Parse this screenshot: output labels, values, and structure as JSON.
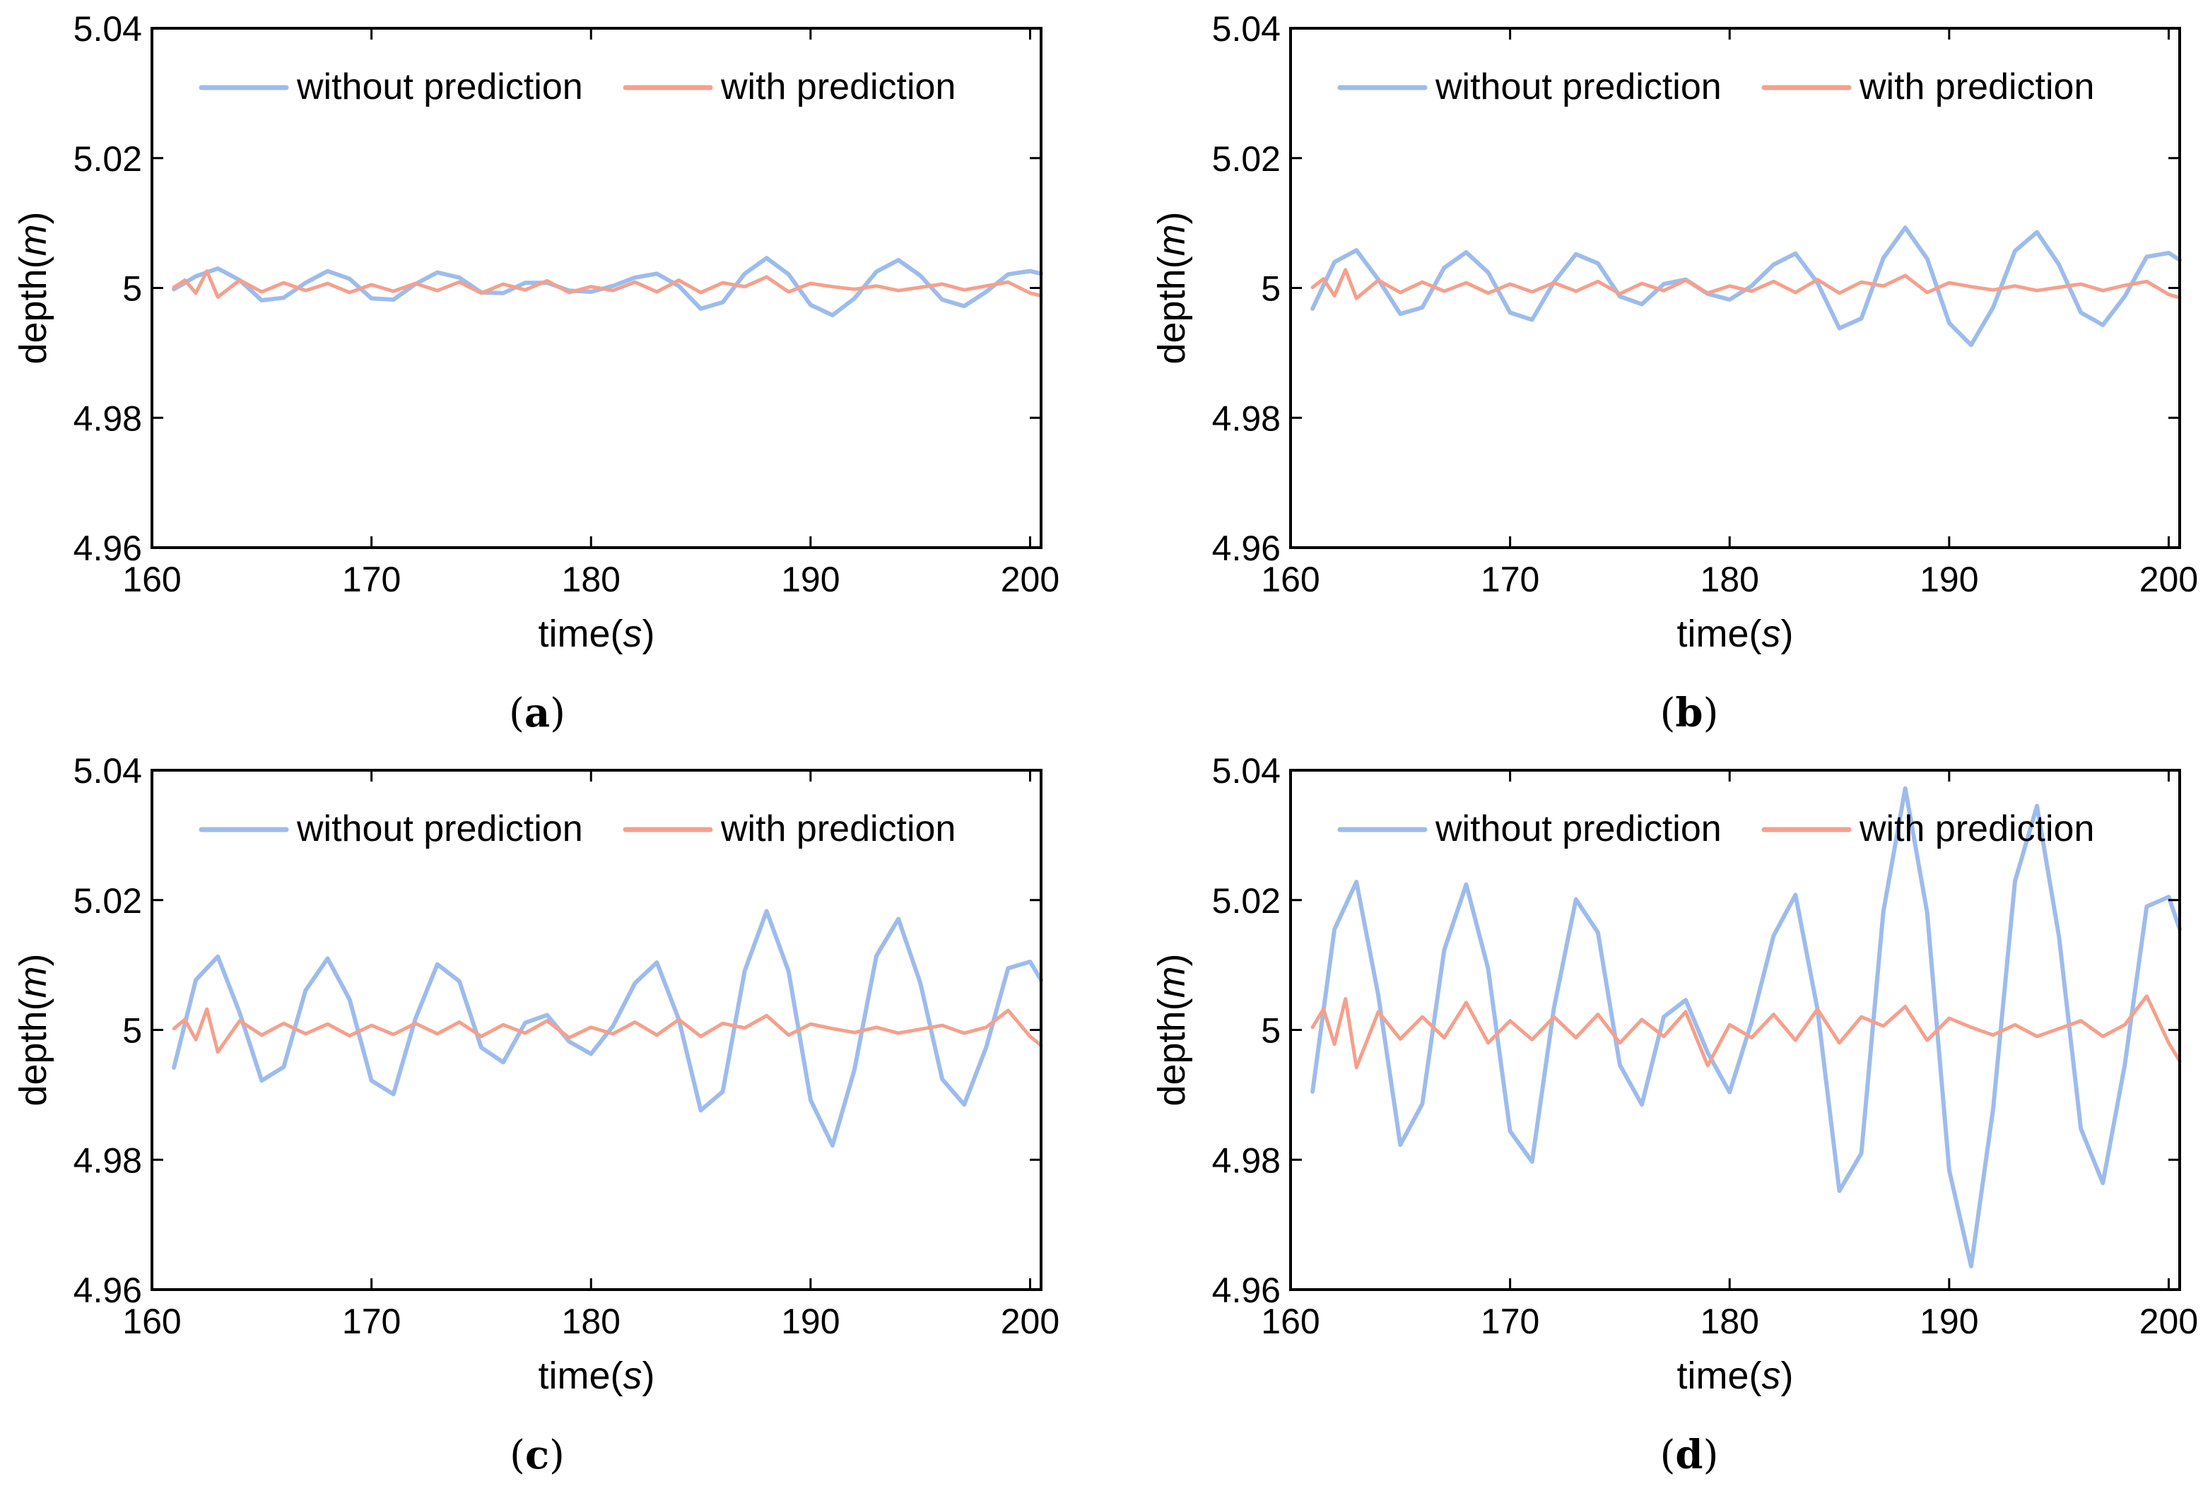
{
  "palette": {
    "without_prediction": "#9dbcec",
    "with_prediction": "#f5a08c"
  },
  "chart_data": [
    {
      "type": "line",
      "caption": "a",
      "xlabel": "time",
      "xlabel_unit": "s",
      "ylabel": "depth",
      "ylabel_unit": "m",
      "xlim": [
        160,
        200.5
      ],
      "ylim": [
        4.96,
        5.04
      ],
      "xticks": [
        "160",
        "170",
        "180",
        "190",
        "200"
      ],
      "yticks": [
        "4.96",
        "4.98",
        "5",
        "5.02",
        "5.04"
      ],
      "legend": {
        "placement": "top",
        "entries": [
          "without prediction",
          "with prediction"
        ]
      },
      "series": [
        {
          "name": "without prediction",
          "color": "#9dbcec",
          "x": [
            161,
            162,
            163,
            164,
            165,
            166,
            167,
            168,
            169,
            170,
            171,
            172,
            173,
            174,
            175,
            176,
            177,
            178,
            179,
            180,
            181,
            182,
            183,
            184,
            185,
            186,
            187,
            188,
            189,
            190,
            191,
            192,
            193,
            194,
            195,
            196,
            197,
            198,
            199,
            200,
            200.5
          ],
          "y": [
            4.9998,
            5.0018,
            5.003,
            5.0012,
            4.9981,
            4.9985,
            5.0008,
            5.0026,
            5.0014,
            4.9984,
            4.9982,
            5.0006,
            5.0024,
            5.0016,
            4.9993,
            4.9992,
            5.0008,
            5.0008,
            4.9996,
            4.9994,
            5.0003,
            5.0016,
            5.0022,
            5.0003,
            4.9968,
            4.9978,
            5.0022,
            5.0046,
            5.0021,
            4.9974,
            4.9958,
            4.9984,
            5.0025,
            5.0043,
            5.0019,
            4.9982,
            4.9972,
            4.9994,
            5.0021,
            5.0026,
            5.0022
          ]
        },
        {
          "name": "with prediction",
          "color": "#f5a08c",
          "x": [
            161,
            161.5,
            162,
            162.5,
            163,
            164,
            165,
            166,
            167,
            168,
            169,
            170,
            171,
            172,
            173,
            174,
            175,
            176,
            177,
            178,
            179,
            180,
            181,
            182,
            183,
            184,
            185,
            186,
            187,
            188,
            189,
            190,
            191,
            192,
            193,
            194,
            195,
            196,
            197,
            198,
            199,
            200,
            200.5
          ],
          "y": [
            5.0001,
            5.0012,
            4.9992,
            5.0026,
            4.9986,
            5.0012,
            4.9994,
            5.0008,
            4.9996,
            5.0007,
            4.9993,
            5.0005,
            4.9995,
            5.0007,
            4.9996,
            5.0009,
            4.9992,
            5.0006,
            4.9997,
            5.0011,
            4.9993,
            5.0002,
            4.9996,
            5.0009,
            4.9994,
            5.0012,
            4.9993,
            5.0008,
            5.0002,
            5.0017,
            4.9994,
            5.0007,
            5.0002,
            4.9998,
            5.0003,
            4.9996,
            5.0001,
            5.0006,
            4.9997,
            5.0003,
            5.0009,
            4.9992,
            4.9988
          ]
        }
      ]
    },
    {
      "type": "line",
      "caption": "b",
      "xlabel": "time",
      "xlabel_unit": "s",
      "ylabel": "depth",
      "ylabel_unit": "m",
      "xlim": [
        160,
        200.5
      ],
      "ylim": [
        4.96,
        5.04
      ],
      "xticks": [
        "160",
        "170",
        "180",
        "190",
        "200"
      ],
      "yticks": [
        "4.96",
        "4.98",
        "5",
        "5.02",
        "5.04"
      ],
      "legend": {
        "placement": "top",
        "entries": [
          "without prediction",
          "with prediction"
        ]
      },
      "series": [
        {
          "name": "without prediction",
          "color": "#9dbcec",
          "x": [
            161,
            162,
            163,
            164,
            165,
            166,
            167,
            168,
            169,
            170,
            171,
            172,
            173,
            174,
            175,
            176,
            177,
            178,
            179,
            180,
            181,
            182,
            183,
            184,
            185,
            186,
            187,
            188,
            189,
            190,
            191,
            192,
            193,
            194,
            195,
            196,
            197,
            198,
            199,
            200,
            200.5
          ],
          "y": [
            4.9968,
            5.004,
            5.0058,
            5.0013,
            4.996,
            4.997,
            5.0031,
            5.0055,
            5.0024,
            4.9962,
            4.9951,
            5.0009,
            5.0052,
            5.0038,
            4.9987,
            4.9975,
            5.0006,
            5.0013,
            4.9991,
            4.9982,
            5.0003,
            5.0036,
            5.0053,
            5.0008,
            4.9938,
            4.9953,
            5.0046,
            5.0093,
            5.0045,
            4.9946,
            4.9912,
            4.997,
            5.0057,
            5.0086,
            5.0036,
            4.9962,
            4.9943,
            4.9987,
            5.0048,
            5.0054,
            5.0043
          ]
        },
        {
          "name": "with prediction",
          "color": "#f5a08c",
          "x": [
            161,
            161.5,
            162,
            162.5,
            163,
            164,
            165,
            166,
            167,
            168,
            169,
            170,
            171,
            172,
            173,
            174,
            175,
            176,
            177,
            178,
            179,
            180,
            181,
            182,
            183,
            184,
            185,
            186,
            187,
            188,
            189,
            190,
            191,
            192,
            193,
            194,
            195,
            196,
            197,
            198,
            199,
            200,
            200.5
          ],
          "y": [
            5.0001,
            5.0014,
            4.9988,
            5.0028,
            4.9984,
            5.0012,
            4.9993,
            5.0009,
            4.9995,
            5.0008,
            4.9992,
            5.0006,
            4.9994,
            5.0008,
            4.9995,
            5.001,
            4.9991,
            5.0007,
            4.9996,
            5.0012,
            4.9992,
            5.0003,
            4.9995,
            5.001,
            4.9993,
            5.0013,
            4.9992,
            5.0009,
            5.0003,
            5.0019,
            4.9993,
            5.0008,
            5.0002,
            4.9997,
            5.0003,
            4.9996,
            5.0001,
            5.0006,
            4.9996,
            5.0004,
            5.001,
            4.999,
            4.9985
          ]
        }
      ]
    },
    {
      "type": "line",
      "caption": "c",
      "xlabel": "time",
      "xlabel_unit": "s",
      "ylabel": "depth",
      "ylabel_unit": "m",
      "xlim": [
        160,
        200.5
      ],
      "ylim": [
        4.96,
        5.04
      ],
      "xticks": [
        "160",
        "170",
        "180",
        "190",
        "200"
      ],
      "yticks": [
        "4.96",
        "4.98",
        "5",
        "5.02",
        "5.04"
      ],
      "legend": {
        "placement": "top",
        "entries": [
          "without prediction",
          "with prediction"
        ]
      },
      "series": [
        {
          "name": "without prediction",
          "color": "#9dbcec",
          "x": [
            161,
            162,
            163,
            164,
            165,
            166,
            167,
            168,
            169,
            170,
            171,
            172,
            173,
            174,
            175,
            176,
            177,
            178,
            179,
            180,
            181,
            182,
            183,
            184,
            185,
            186,
            187,
            188,
            189,
            190,
            191,
            192,
            193,
            194,
            195,
            196,
            197,
            198,
            199,
            200,
            200.5
          ],
          "y": [
            4.9942,
            5.0077,
            5.0113,
            5.0026,
            4.9922,
            4.9943,
            5.0061,
            5.011,
            5.0047,
            4.9922,
            4.9901,
            5.0017,
            5.0101,
            5.0075,
            4.9973,
            4.995,
            5.0011,
            5.0023,
            4.9982,
            4.9963,
            5.0006,
            5.0072,
            5.0104,
            5.0016,
            4.9876,
            4.9905,
            5.0091,
            5.0183,
            5.009,
            4.9892,
            4.9822,
            4.9939,
            5.0114,
            5.0171,
            5.0072,
            4.9924,
            4.9885,
            4.9973,
            5.0095,
            5.0105,
            5.0077
          ]
        },
        {
          "name": "with prediction",
          "color": "#f5a08c",
          "x": [
            161,
            161.5,
            162,
            162.5,
            163,
            164,
            165,
            166,
            167,
            168,
            169,
            170,
            171,
            172,
            173,
            174,
            175,
            176,
            177,
            178,
            179,
            180,
            181,
            182,
            183,
            184,
            185,
            186,
            187,
            188,
            189,
            190,
            191,
            192,
            193,
            194,
            195,
            196,
            197,
            198,
            199,
            200,
            200.5
          ],
          "y": [
            5.0002,
            5.0016,
            4.9985,
            5.0032,
            4.9966,
            5.0014,
            4.9992,
            5.001,
            4.9994,
            5.0009,
            4.9991,
            5.0007,
            4.9993,
            5.001,
            4.9994,
            5.0012,
            4.999,
            5.0008,
            4.9995,
            5.0014,
            4.9988,
            5.0004,
            4.9994,
            5.0012,
            4.9992,
            5.0016,
            4.999,
            5.001,
            5.0003,
            5.0022,
            4.9992,
            5.0009,
            5.0002,
            4.9996,
            5.0004,
            4.9995,
            5.0001,
            5.0007,
            4.9995,
            5.0004,
            5.003,
            4.999,
            4.9976
          ]
        }
      ]
    },
    {
      "type": "line",
      "caption": "d",
      "xlabel": "time",
      "xlabel_unit": "s",
      "ylabel": "depth",
      "ylabel_unit": "m",
      "xlim": [
        160,
        200.5
      ],
      "ylim": [
        4.96,
        5.04
      ],
      "xticks": [
        "160",
        "170",
        "180",
        "190",
        "200"
      ],
      "yticks": [
        "4.96",
        "4.98",
        "5",
        "5.02",
        "5.04"
      ],
      "legend": {
        "placement": "top",
        "entries": [
          "without prediction",
          "with prediction"
        ]
      },
      "series": [
        {
          "name": "without prediction",
          "color": "#9dbcec",
          "x": [
            161,
            162,
            163,
            164,
            165,
            166,
            167,
            168,
            169,
            170,
            171,
            172,
            173,
            174,
            175,
            176,
            177,
            178,
            179,
            180,
            181,
            182,
            183,
            184,
            185,
            186,
            187,
            188,
            189,
            190,
            191,
            192,
            193,
            194,
            195,
            196,
            197,
            198,
            199,
            200,
            200.5
          ],
          "y": [
            4.9905,
            5.0155,
            5.0228,
            5.0053,
            4.9823,
            4.9886,
            5.0123,
            5.0224,
            5.0094,
            4.9844,
            4.9797,
            5.0034,
            5.0201,
            5.015,
            4.9946,
            4.9885,
            5.002,
            5.0046,
            4.9965,
            4.9904,
            5.0012,
            5.0145,
            5.0208,
            5.0032,
            4.9752,
            4.981,
            5.0182,
            5.0372,
            5.018,
            4.9784,
            4.9636,
            4.9878,
            5.0229,
            5.0345,
            5.0144,
            4.9848,
            4.9764,
            4.9946,
            5.019,
            5.0205,
            5.0155
          ]
        },
        {
          "name": "with prediction",
          "color": "#f5a08c",
          "x": [
            161,
            161.5,
            162,
            162.5,
            163,
            164,
            165,
            166,
            167,
            168,
            169,
            170,
            171,
            172,
            173,
            174,
            175,
            176,
            177,
            178,
            179,
            180,
            181,
            182,
            183,
            184,
            185,
            186,
            187,
            188,
            189,
            190,
            191,
            192,
            193,
            194,
            195,
            196,
            197,
            198,
            199,
            200,
            200.5
          ],
          "y": [
            5.0004,
            5.0032,
            4.9978,
            5.0048,
            4.9942,
            5.0028,
            4.9986,
            5.002,
            4.9988,
            5.0042,
            4.998,
            5.0014,
            4.9985,
            5.002,
            4.9988,
            5.0024,
            4.998,
            5.0016,
            4.999,
            5.0028,
            4.9945,
            5.0008,
            4.9988,
            5.0024,
            4.9984,
            5.0032,
            4.998,
            5.002,
            5.0006,
            5.0036,
            4.9984,
            5.0018,
            5.0004,
            4.9992,
            5.0008,
            4.999,
            5.0002,
            5.0014,
            4.999,
            5.0008,
            5.0052,
            4.998,
            4.9952
          ]
        }
      ]
    }
  ]
}
